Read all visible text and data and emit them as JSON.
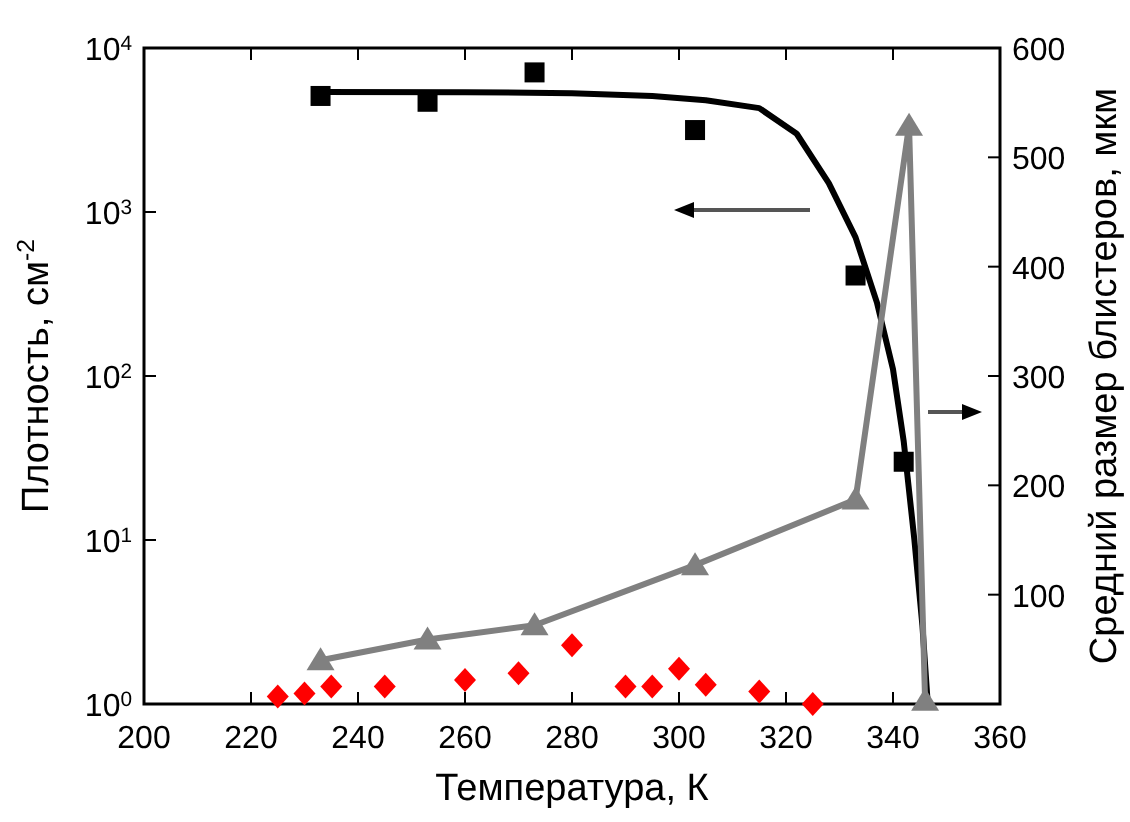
{
  "chart_data": {
    "type": "scatter",
    "xlabel": "Температура, К",
    "ylabel": "Плотность,  см$^{-2}$",
    "y2label": "Средний размер блистеров,   мкм",
    "xlim": [
      200,
      360
    ],
    "xticks": [
      200,
      220,
      240,
      260,
      280,
      300,
      320,
      340,
      360
    ],
    "ylim": [
      1,
      10000
    ],
    "yticks": [
      {
        "value": 1,
        "label": "10$^{0}$"
      },
      {
        "value": 10,
        "label": "10$^{1}$"
      },
      {
        "value": 100,
        "label": "10$^{2}$"
      },
      {
        "value": 1000,
        "label": "10$^{3}$"
      },
      {
        "value": 10000,
        "label": "10$^{4}$"
      }
    ],
    "y2lim": [
      0,
      600
    ],
    "y2ticks": [
      100,
      200,
      300,
      400,
      500,
      600
    ],
    "log": "y",
    "grid": false,
    "series": [
      {
        "type": "line",
        "color": "#000000",
        "marker": "none",
        "x": [
          233,
          260,
          280,
          295,
          305,
          315,
          322,
          328,
          333,
          337,
          340,
          342,
          344,
          345.5,
          346.5
        ],
        "values": [
          5400,
          5380,
          5300,
          5100,
          4800,
          4300,
          3000,
          1500,
          700,
          280,
          110,
          40,
          10,
          3,
          1
        ]
      },
      {
        "color": "#000000",
        "marker": "square",
        "x": [
          233,
          253,
          273,
          303,
          333,
          342
        ],
        "values": [
          5100,
          4700,
          7100,
          3160,
          410,
          30
        ]
      },
      {
        "type": "line",
        "color": "#808080",
        "marker": "triangle",
        "axis": "y2",
        "x": [
          233,
          253,
          273,
          303,
          333,
          343,
          346
        ],
        "values": [
          40,
          59,
          72,
          127,
          187,
          529,
          3
        ]
      },
      {
        "color": "#ff0000",
        "marker": "diamond",
        "x": [
          225,
          230,
          235,
          245,
          260,
          270,
          280,
          290,
          295,
          300,
          305,
          315,
          325
        ],
        "values": [
          1.11,
          1.16,
          1.28,
          1.28,
          1.4,
          1.54,
          2.28,
          1.28,
          1.28,
          1.64,
          1.31,
          1.19,
          1.0
        ]
      }
    ]
  }
}
